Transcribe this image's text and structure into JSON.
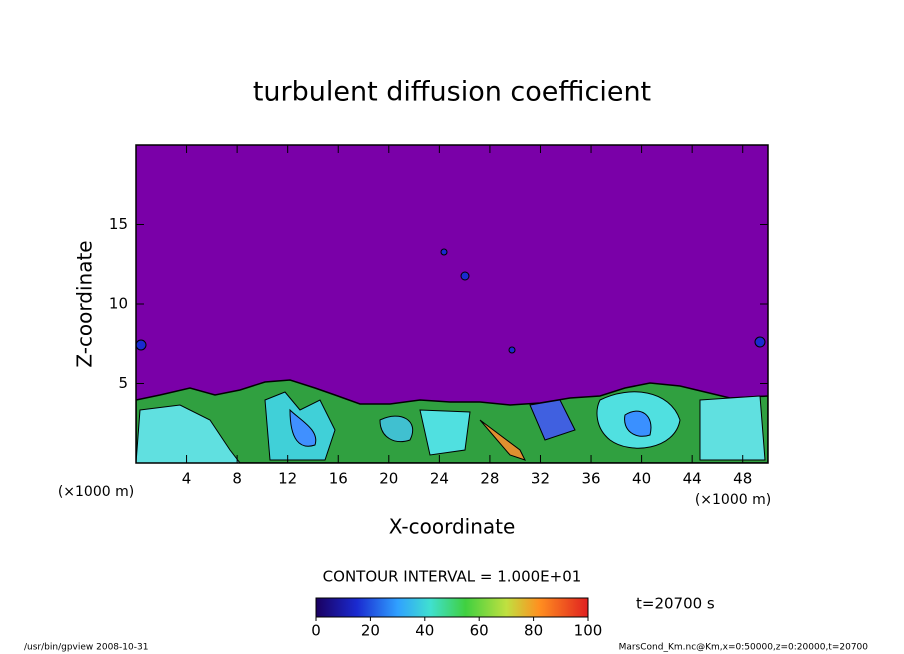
{
  "chart_data": {
    "type": "contour",
    "title": "turbulent diffusion coefficient",
    "x_label": "X-coordinate",
    "y_label": "Z-coordinate",
    "x_unit": "(×1000 m)",
    "y_unit": "(×1000 m)",
    "xlim": [
      0,
      50
    ],
    "xticks": [
      4,
      8,
      12,
      16,
      20,
      24,
      28,
      32,
      36,
      40,
      44,
      48
    ],
    "ylim": [
      0,
      20
    ],
    "yticks": [
      5,
      10,
      15
    ],
    "contour_interval": "CONTOUR INTERVAL = 1.000E+01",
    "colorbar_lim": [
      0,
      100
    ],
    "colorbar_ticks": [
      0,
      20,
      40,
      60,
      80,
      100
    ],
    "time_label": "t=20700 s",
    "footer_left": "/usr/bin/gpview  2008-10-31",
    "footer_right": "MarsCond_Km.nc@Km,x=0:50000,z=0:20000,t=20700"
  }
}
